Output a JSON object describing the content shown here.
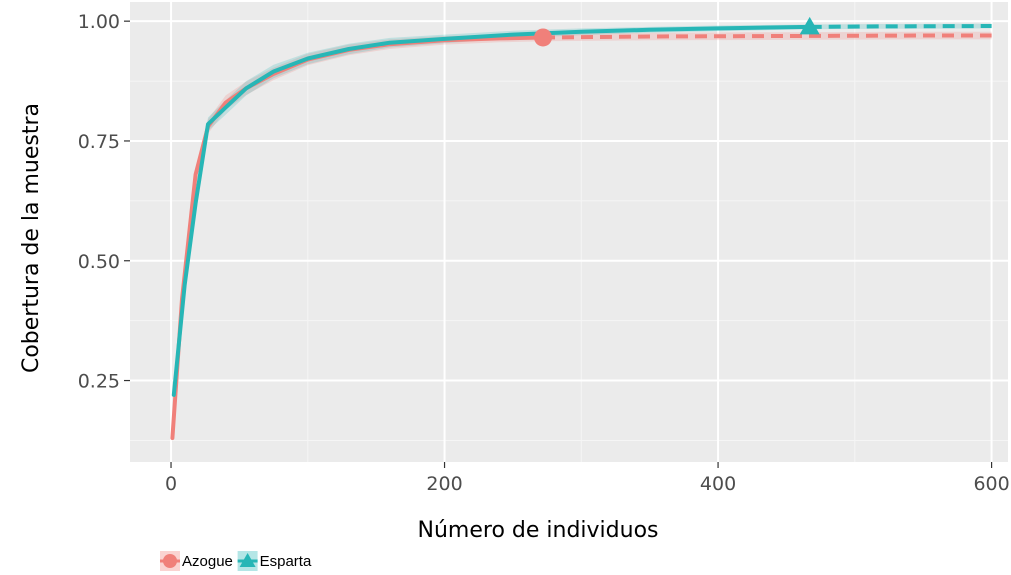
{
  "chart_data": {
    "type": "line",
    "xlabel": "Número de individuos",
    "ylabel": "Cobertura de la muestra",
    "xlim": [
      -30,
      612
    ],
    "ylim": [
      0.08,
      1.04
    ],
    "x_ticks": [
      0,
      200,
      400,
      600
    ],
    "x_tick_labels": [
      "0",
      "200",
      "400",
      "600"
    ],
    "y_ticks": [
      0.25,
      0.5,
      0.75,
      1.0
    ],
    "y_tick_labels": [
      "0.25",
      "0.50",
      "0.75",
      "1.00"
    ],
    "grid": true,
    "legend_position": "bottom-left",
    "series": [
      {
        "name": "Azogue",
        "color": "#f0807a",
        "marker": "circle",
        "observed": {
          "x": 272,
          "y": 0.966
        },
        "interpolated": [
          [
            1,
            0.13
          ],
          [
            8,
            0.42
          ],
          [
            18,
            0.68
          ],
          [
            27,
            0.78
          ],
          [
            40,
            0.83
          ],
          [
            55,
            0.86
          ],
          [
            75,
            0.89
          ],
          [
            100,
            0.92
          ],
          [
            130,
            0.94
          ],
          [
            160,
            0.952
          ],
          [
            200,
            0.96
          ],
          [
            240,
            0.964
          ],
          [
            272,
            0.966
          ]
        ],
        "extrapolated": [
          [
            272,
            0.966
          ],
          [
            350,
            0.968
          ],
          [
            450,
            0.969
          ],
          [
            550,
            0.97
          ],
          [
            600,
            0.97
          ]
        ],
        "band_halfwidth": [
          0.01,
          0.012,
          0.014,
          0.015,
          0.015,
          0.014,
          0.013,
          0.012,
          0.011,
          0.01,
          0.009,
          0.008,
          0.008
        ]
      },
      {
        "name": "Esparta",
        "color": "#27b6b6",
        "marker": "triangle",
        "observed": {
          "x": 467,
          "y": 0.988
        },
        "interpolated": [
          [
            2,
            0.22
          ],
          [
            10,
            0.45
          ],
          [
            18,
            0.62
          ],
          [
            27,
            0.785
          ],
          [
            40,
            0.82
          ],
          [
            55,
            0.86
          ],
          [
            75,
            0.895
          ],
          [
            100,
            0.922
          ],
          [
            130,
            0.942
          ],
          [
            160,
            0.955
          ],
          [
            200,
            0.963
          ],
          [
            250,
            0.972
          ],
          [
            300,
            0.978
          ],
          [
            350,
            0.982
          ],
          [
            400,
            0.985
          ],
          [
            467,
            0.988
          ]
        ],
        "extrapolated": [
          [
            467,
            0.988
          ],
          [
            520,
            0.989
          ],
          [
            600,
            0.99
          ]
        ],
        "band_halfwidth": [
          0.01,
          0.012,
          0.013,
          0.014,
          0.015,
          0.015,
          0.014,
          0.012,
          0.011,
          0.01,
          0.009,
          0.008,
          0.007,
          0.006,
          0.006,
          0.005
        ]
      }
    ]
  }
}
